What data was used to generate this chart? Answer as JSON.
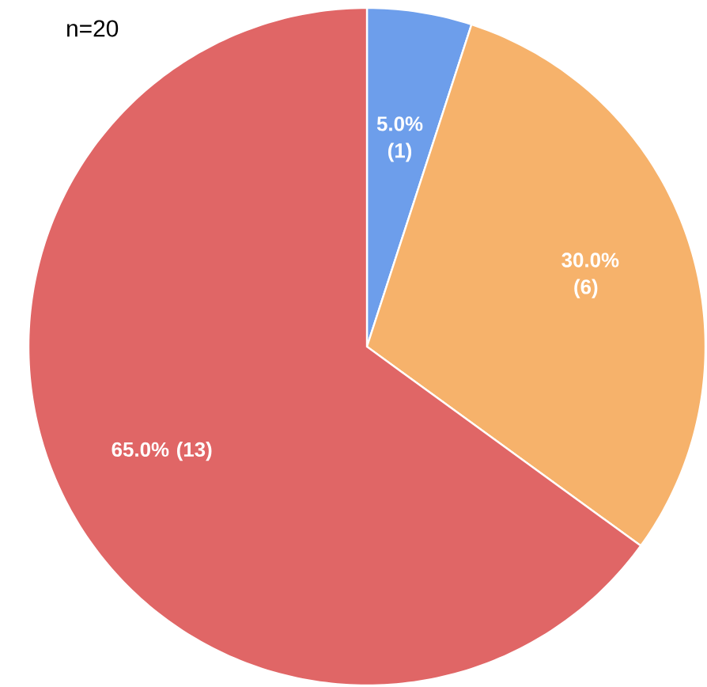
{
  "chart_data": {
    "type": "pie",
    "title": "n=20",
    "categories": [
      null,
      null,
      null
    ],
    "values": [
      5,
      30,
      65
    ],
    "colors": [
      "#6d9eeb",
      "#f6b26b",
      "#e06666"
    ],
    "value_labels": [
      "5.0% (1)",
      "30.0% (6)",
      "65.0% (13)"
    ]
  }
}
